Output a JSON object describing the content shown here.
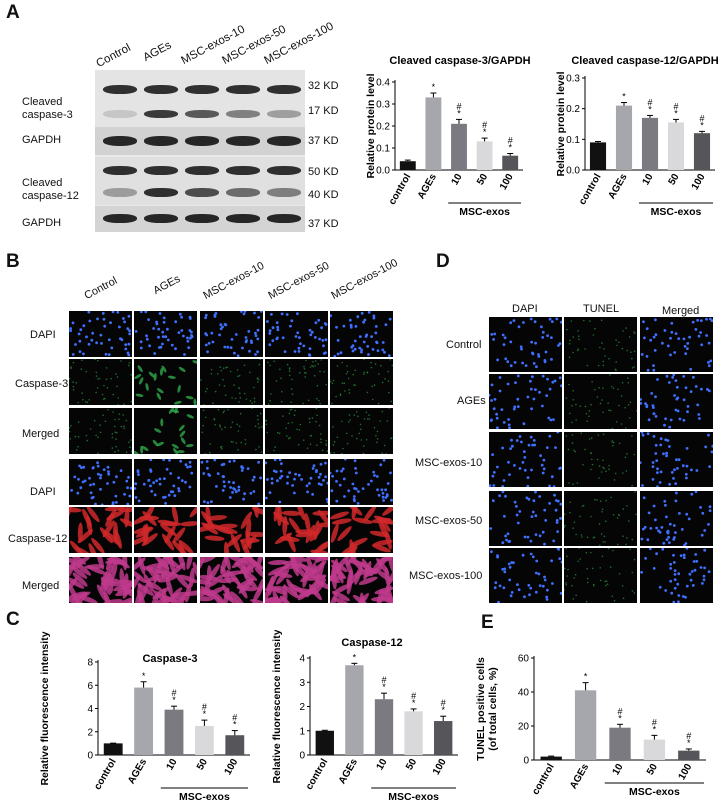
{
  "figure": {
    "panels": {
      "a": "A",
      "b": "B",
      "c": "C",
      "d": "D",
      "e": "E"
    }
  },
  "panel_a": {
    "lanes": [
      "Control",
      "AGEs",
      "MSC-exos-10",
      "MSC-exos-50",
      "MSC-exos-100"
    ],
    "row_labels": {
      "cleaved_casp3": "Cleaved\ncaspase-3",
      "gapdh1": "GAPDH",
      "cleaved_casp12": "Cleaved\ncaspase-12",
      "gapdh2": "GAPDH"
    },
    "kd_labels": [
      "32 KD",
      "17 KD",
      "37 KD",
      "50 KD",
      "40 KD",
      "37 KD"
    ]
  },
  "panel_b": {
    "columns": [
      "Control",
      "AGEs",
      "MSC-exos-10",
      "MSC-exos-50",
      "MSC-exos-100"
    ],
    "rows": [
      "DAPI",
      "Caspase-3",
      "Merged",
      "DAPI",
      "Caspase-12",
      "Merged"
    ]
  },
  "panel_d": {
    "columns": [
      "DAPI",
      "TUNEL",
      "Merged"
    ],
    "rows": [
      "Control",
      "AGEs",
      "MSC-exos-10",
      "MSC-exos-50",
      "MSC-exos-100"
    ]
  },
  "chart_data": [
    {
      "id": "a1",
      "type": "bar",
      "title": "Cleaved caspase-3/GAPDH",
      "ylabel": "Relative protein level",
      "categories": [
        "control",
        "AGEs",
        "10",
        "50",
        "100"
      ],
      "values": [
        0.04,
        0.33,
        0.21,
        0.13,
        0.065
      ],
      "errors": [
        0.005,
        0.02,
        0.02,
        0.015,
        0.01
      ],
      "marks": [
        "",
        "*",
        "#\n*",
        "#\n*",
        "#\n*"
      ],
      "ylim": [
        0,
        0.4
      ],
      "yticks": [
        "0.0",
        "0.1",
        "0.2",
        "0.3",
        "0.4"
      ],
      "group_label": "MSC-exos",
      "colors": [
        "#111111",
        "#a6a6ad",
        "#7a7a80",
        "#d9d9db",
        "#55555a"
      ]
    },
    {
      "id": "a2",
      "type": "bar",
      "title": "Cleaved caspase-12/GAPDH",
      "ylabel": "Relative protein level",
      "categories": [
        "control",
        "AGEs",
        "10",
        "50",
        "100"
      ],
      "values": [
        0.09,
        0.21,
        0.17,
        0.155,
        0.12
      ],
      "errors": [
        0.003,
        0.01,
        0.008,
        0.01,
        0.006
      ],
      "marks": [
        "",
        "*",
        "#\n*",
        "#\n*",
        "#\n*"
      ],
      "ylim": [
        0,
        0.3
      ],
      "yticks": [
        "0.0",
        "0.1",
        "0.2",
        "0.3"
      ],
      "group_label": "MSC-exos",
      "colors": [
        "#111111",
        "#a6a6ad",
        "#7a7a80",
        "#d9d9db",
        "#55555a"
      ]
    },
    {
      "id": "c1",
      "type": "bar",
      "title": "Caspase-3",
      "ylabel": "Relative fluorescence intensity",
      "categories": [
        "control",
        "AGEs",
        "10",
        "50",
        "100"
      ],
      "values": [
        1.0,
        5.8,
        3.9,
        2.5,
        1.7
      ],
      "errors": [
        0.02,
        0.5,
        0.3,
        0.5,
        0.4
      ],
      "marks": [
        "",
        "*",
        "#\n*",
        "#\n*",
        "#\n*"
      ],
      "ylim": [
        0,
        8
      ],
      "yticks": [
        "0",
        "2",
        "4",
        "6",
        "8"
      ],
      "group_label": "MSC-exos",
      "colors": [
        "#111111",
        "#a6a6ad",
        "#7a7a80",
        "#d9d9db",
        "#55555a"
      ]
    },
    {
      "id": "c2",
      "type": "bar",
      "title": "Caspase-12",
      "ylabel": "Relative fluorescence intensity",
      "categories": [
        "control",
        "AGEs",
        "10",
        "50",
        "100"
      ],
      "values": [
        1.0,
        3.7,
        2.3,
        1.8,
        1.4
      ],
      "errors": [
        0.02,
        0.08,
        0.25,
        0.1,
        0.2
      ],
      "marks": [
        "",
        "*",
        "#\n*",
        "#\n*",
        "#\n*"
      ],
      "ylim": [
        0,
        4
      ],
      "yticks": [
        "0",
        "1",
        "2",
        "3",
        "4"
      ],
      "group_label": "MSC-exos",
      "colors": [
        "#111111",
        "#a6a6ad",
        "#7a7a80",
        "#d9d9db",
        "#55555a"
      ]
    },
    {
      "id": "e",
      "type": "bar",
      "title": "",
      "ylabel": "TUNEL positive cells\n(of total cells, %)",
      "categories": [
        "control",
        "AGEs",
        "10",
        "50",
        "100"
      ],
      "values": [
        2,
        41,
        19,
        12,
        5.5
      ],
      "errors": [
        0.3,
        4.5,
        2,
        2.5,
        1
      ],
      "marks": [
        "",
        "*",
        "#\n*",
        "#\n*",
        "#\n*"
      ],
      "ylim": [
        0,
        60
      ],
      "yticks": [
        "0",
        "20",
        "40",
        "60"
      ],
      "group_label": "MSC-exos",
      "colors": [
        "#111111",
        "#a6a6ad",
        "#7a7a80",
        "#d9d9db",
        "#55555a"
      ]
    }
  ]
}
